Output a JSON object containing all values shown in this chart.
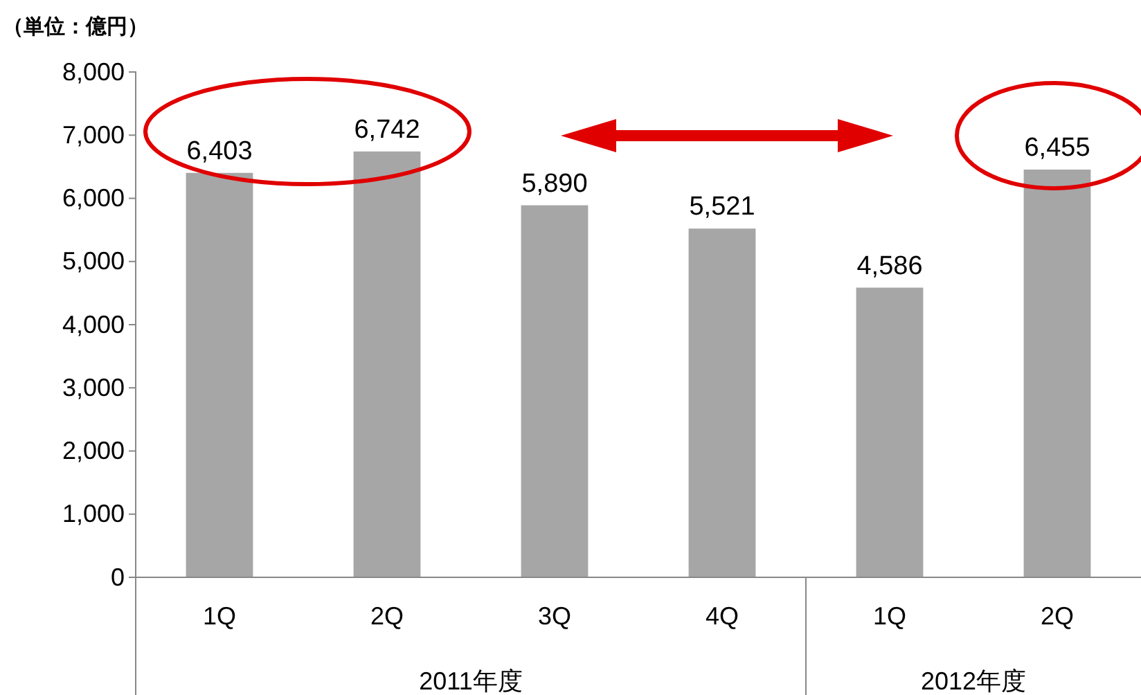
{
  "chart_data": {
    "type": "bar",
    "ylabel": "（単位：億円）",
    "categories": [
      "1Q",
      "2Q",
      "3Q",
      "4Q",
      "1Q",
      "2Q"
    ],
    "values": [
      6403,
      6742,
      5890,
      5521,
      4586,
      6455
    ],
    "color": "#a6a6a6",
    "ylim": [
      0,
      8000
    ],
    "yticks": [
      {
        "value": 0,
        "label": "0"
      },
      {
        "value": 1000,
        "label": "1,000"
      },
      {
        "value": 2000,
        "label": "2,000"
      },
      {
        "value": 3000,
        "label": "3,000"
      },
      {
        "value": 4000,
        "label": "4,000"
      },
      {
        "value": 5000,
        "label": "5,000"
      },
      {
        "value": 6000,
        "label": "6,000"
      },
      {
        "value": 7000,
        "label": "7,000"
      },
      {
        "value": 8000,
        "label": "8,000"
      }
    ],
    "value_labels": [
      "6,403",
      "6,742",
      "5,890",
      "5,521",
      "4,586",
      "6,455"
    ],
    "annotations": [
      "2011年度",
      "2012年度"
    ]
  }
}
